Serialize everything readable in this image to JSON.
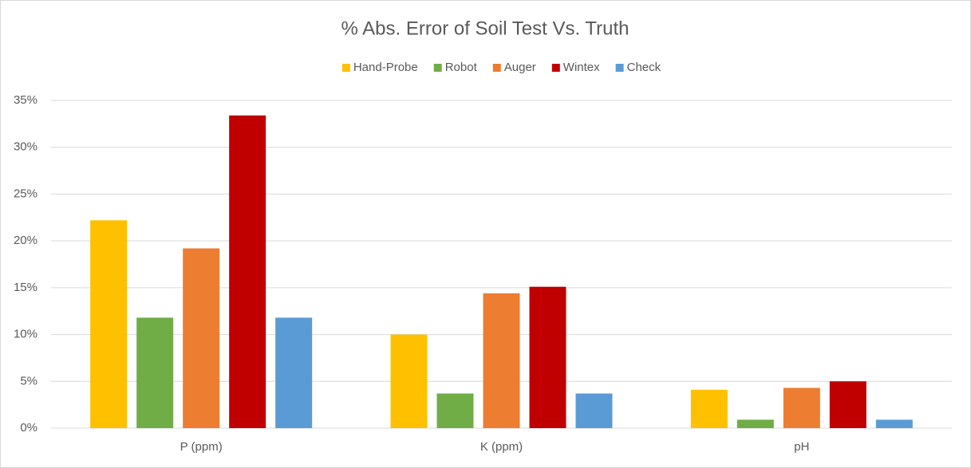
{
  "chart_data": {
    "type": "bar",
    "title": "% Abs. Error of Soil Test Vs. Truth",
    "categories": [
      "P (ppm)",
      "K (ppm)",
      "pH"
    ],
    "series": [
      {
        "name": "Hand-Probe",
        "color": "#ffc000",
        "values": [
          22.2,
          10.0,
          4.1
        ]
      },
      {
        "name": "Robot",
        "color": "#70ad47",
        "values": [
          11.8,
          3.7,
          0.9
        ]
      },
      {
        "name": "Auger",
        "color": "#ed7d31",
        "values": [
          19.2,
          14.4,
          4.3
        ]
      },
      {
        "name": "Wintex",
        "color": "#c00000",
        "values": [
          33.4,
          15.1,
          5.0
        ]
      },
      {
        "name": "Check",
        "color": "#5b9bd5",
        "values": [
          11.8,
          3.7,
          0.9
        ]
      }
    ],
    "ylim": [
      0,
      35
    ],
    "yticks": [
      {
        "value": 0,
        "label": "0%"
      },
      {
        "value": 5,
        "label": "5%"
      },
      {
        "value": 10,
        "label": "10%"
      },
      {
        "value": 15,
        "label": "15%"
      },
      {
        "value": 20,
        "label": "20%"
      },
      {
        "value": 25,
        "label": "25%"
      },
      {
        "value": 30,
        "label": "30%"
      },
      {
        "value": 35,
        "label": "35%"
      }
    ],
    "grid": true,
    "legend": "top"
  }
}
